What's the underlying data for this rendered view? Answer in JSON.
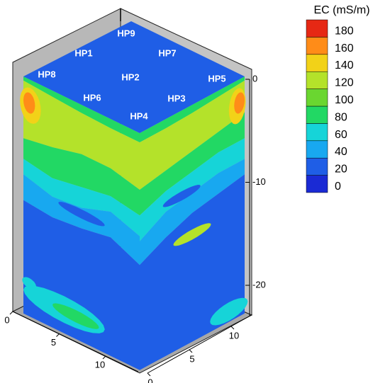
{
  "chart_data": {
    "type": "contour3d",
    "colorbar": {
      "title": "EC (mS/m)",
      "levels": [
        0,
        20,
        40,
        60,
        80,
        100,
        120,
        140,
        160,
        180
      ],
      "colors": [
        "#1a2ad4",
        "#1f5ee6",
        "#18a8f0",
        "#16d4d8",
        "#22d864",
        "#6ad630",
        "#b4e22a",
        "#f2d218",
        "#ff8c18",
        "#e62814"
      ]
    },
    "zlim": [
      -23,
      0
    ],
    "zticks": [
      0,
      -10,
      -20
    ],
    "xlim": [
      0,
      13.5
    ],
    "xticks": [
      0,
      5,
      10
    ],
    "ylim": [
      0,
      12.5
    ],
    "yticks": [
      0,
      5,
      10
    ],
    "labels": [
      "HP9",
      "HP1",
      "HP7",
      "HP8",
      "HP2",
      "HP5",
      "HP6",
      "HP3",
      "HP4"
    ]
  }
}
